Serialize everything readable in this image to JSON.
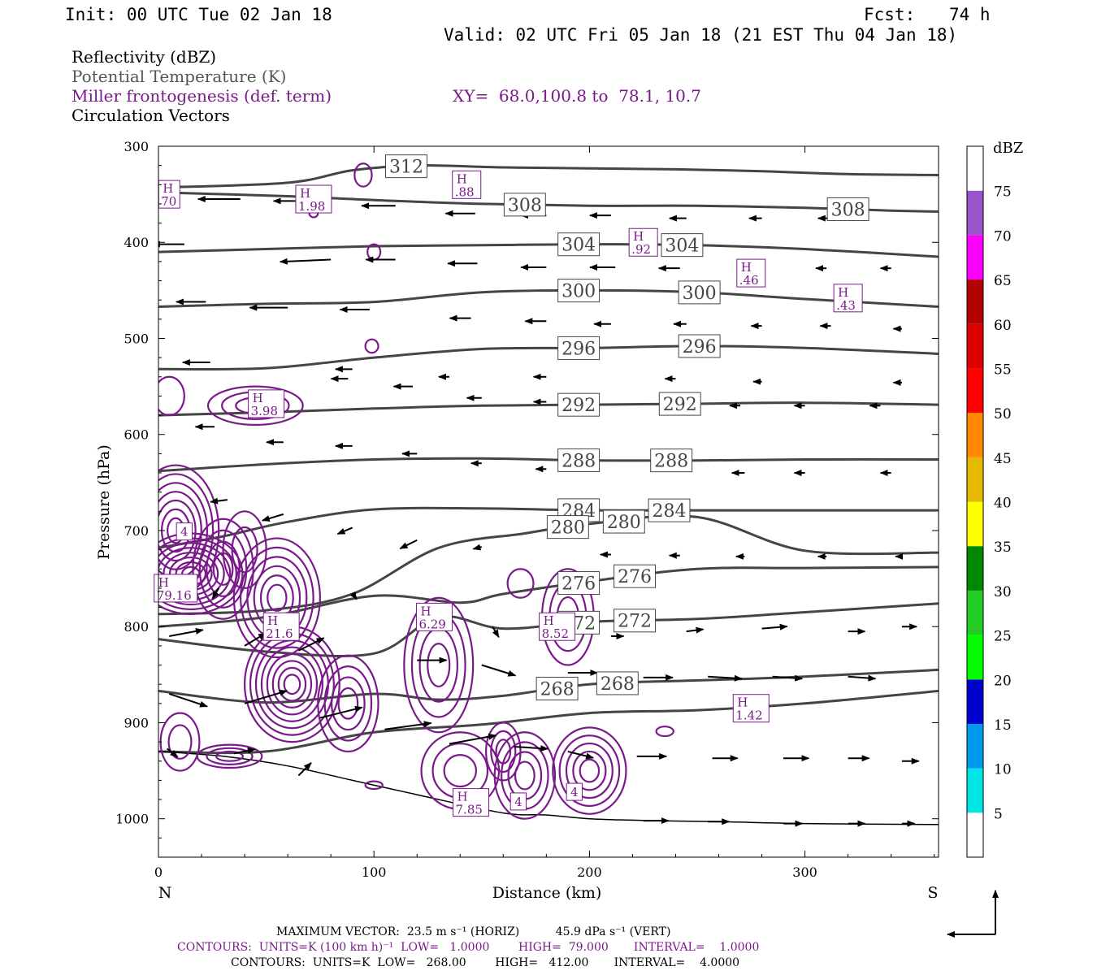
{
  "header": {
    "init": "Init: 00 UTC Tue 02 Jan 18",
    "fcst_label": "Fcst:",
    "fcst_value": "74 h",
    "valid": "Valid: 02 UTC Fri 05 Jan 18 (21 EST Thu 04 Jan 18)"
  },
  "legend": {
    "reflectivity": "Reflectivity (dBZ)",
    "theta": "Potential Temperature (K)",
    "frontogenesis": "Miller frontogenesis (def. term)",
    "xy": "XY=  68.0,100.8 to  78.1, 10.7",
    "vectors": "Circulation Vectors"
  },
  "colors": {
    "theta": "#454545",
    "frontogenesis": "#7a1a8a",
    "vectors": "#000000"
  },
  "chart_data": {
    "type": "cross-section",
    "xlabel": "Distance (km)",
    "ylabel": "Pressure (hPa)",
    "xlim": [
      0,
      362
    ],
    "ylim": [
      1040,
      300
    ],
    "x_ticks": [
      0,
      100,
      200,
      300
    ],
    "y_ticks": [
      300,
      400,
      500,
      600,
      700,
      800,
      900,
      1000
    ],
    "x_end_labels": {
      "left": "N",
      "right": "S"
    },
    "colorbar": {
      "title": "dBZ",
      "labels": [
        "5",
        "10",
        "15",
        "20",
        "25",
        "30",
        "35",
        "40",
        "45",
        "50",
        "55",
        "60",
        "65",
        "70",
        "75"
      ],
      "colors": [
        "#ffffff",
        "#00e5e5",
        "#0099ee",
        "#0000cc",
        "#00ff00",
        "#22cc22",
        "#008800",
        "#ffff00",
        "#e6b800",
        "#ff8800",
        "#ff0000",
        "#dd0000",
        "#b30000",
        "#ff00ff",
        "#9955cc",
        "#ffffff"
      ]
    },
    "isentropes": [
      {
        "label": "312",
        "x": [
          0,
          60,
          90,
          120,
          160,
          200,
          240,
          280,
          320,
          362
        ],
        "p": [
          343,
          338,
          325,
          320,
          322,
          323,
          324,
          326,
          329,
          330
        ]
      },
      {
        "label": "308",
        "x": [
          0,
          60,
          100,
          150,
          200,
          250,
          300,
          340,
          362
        ],
        "p": [
          348,
          352,
          356,
          360,
          362,
          362,
          364,
          367,
          368
        ]
      },
      {
        "label": "304",
        "x": [
          0,
          50,
          100,
          150,
          200,
          250,
          300,
          362
        ],
        "p": [
          410,
          407,
          404,
          403,
          402,
          403,
          407,
          415
        ]
      },
      {
        "label": "300",
        "x": [
          0,
          50,
          100,
          150,
          200,
          250,
          300,
          362
        ],
        "p": [
          467,
          464,
          462,
          452,
          450,
          452,
          459,
          467
        ]
      },
      {
        "label": "296",
        "x": [
          0,
          50,
          100,
          150,
          200,
          250,
          300,
          362
        ],
        "p": [
          532,
          531,
          520,
          511,
          510,
          508,
          510,
          516
        ]
      },
      {
        "label": "292",
        "x": [
          0,
          50,
          100,
          150,
          200,
          250,
          300,
          362
        ],
        "p": [
          580,
          577,
          573,
          570,
          569,
          568,
          567,
          569
        ]
      },
      {
        "label": "288",
        "x": [
          0,
          50,
          100,
          150,
          200,
          250,
          300,
          362
        ],
        "p": [
          638,
          631,
          626,
          625,
          627,
          627,
          626,
          626
        ]
      },
      {
        "label": "284",
        "x": [
          0,
          30,
          60,
          100,
          150,
          200,
          250,
          300,
          362
        ],
        "p": [
          718,
          706,
          691,
          678,
          677,
          679,
          679,
          679,
          679
        ]
      },
      {
        "label": "280",
        "x": [
          0,
          50,
          90,
          130,
          170,
          200,
          250,
          300,
          362
        ],
        "p": [
          787,
          783,
          766,
          718,
          703,
          693,
          686,
          721,
          723
        ]
      },
      {
        "label": "276",
        "x": [
          0,
          50,
          100,
          140,
          160,
          200,
          250,
          300,
          362
        ],
        "p": [
          800,
          790,
          768,
          775,
          766,
          753,
          740,
          739,
          738
        ]
      },
      {
        "label": "272",
        "x": [
          0,
          50,
          100,
          130,
          160,
          200,
          250,
          300,
          362
        ],
        "p": [
          813,
          826,
          828,
          790,
          802,
          795,
          792,
          785,
          776
        ]
      },
      {
        "label": "268",
        "x": [
          0,
          50,
          100,
          130,
          160,
          200,
          250,
          300,
          362
        ],
        "p": [
          867,
          879,
          870,
          876,
          872,
          860,
          856,
          852,
          845
        ]
      },
      {
        "label": "",
        "x": [
          0,
          50,
          100,
          150,
          200,
          250,
          300,
          362
        ],
        "p": [
          930,
          930,
          910,
          902,
          890,
          887,
          880,
          867
        ]
      }
    ],
    "surface": {
      "x": [
        0,
        30,
        60,
        90,
        120,
        160,
        180,
        200,
        230,
        260,
        300,
        362
      ],
      "p": [
        930,
        935,
        945,
        960,
        975,
        994,
        996,
        1000,
        1002,
        1003,
        1005,
        1006
      ]
    },
    "frontogenesis_maxima": [
      {
        "x": 5,
        "p": 350,
        "value": "70"
      },
      {
        "x": 72,
        "p": 355,
        "value": "1.98"
      },
      {
        "x": 143,
        "p": 340,
        "value": ".88"
      },
      {
        "x": 225,
        "p": 400,
        "value": ".92"
      },
      {
        "x": 275,
        "p": 432,
        "value": ".46"
      },
      {
        "x": 320,
        "p": 458,
        "value": ".43"
      },
      {
        "x": 50,
        "p": 568,
        "value": "3.98"
      },
      {
        "x": 8,
        "p": 760,
        "value": "79.16"
      },
      {
        "x": 57,
        "p": 800,
        "value": "21.6"
      },
      {
        "x": 128,
        "p": 790,
        "value": "6.29"
      },
      {
        "x": 185,
        "p": 800,
        "value": "8.52"
      },
      {
        "x": 275,
        "p": 885,
        "value": "1.42"
      },
      {
        "x": 145,
        "p": 983,
        "value": "7.85"
      }
    ],
    "small_labels": [
      {
        "x": 12,
        "p": 701,
        "value": "4"
      },
      {
        "x": 167,
        "p": 982,
        "value": "4"
      },
      {
        "x": 193,
        "p": 972,
        "value": "4"
      }
    ],
    "vectors": [
      {
        "x": 8,
        "p": 350,
        "u": -22,
        "w": 0
      },
      {
        "x": 38,
        "p": 355,
        "u": -20,
        "w": 0
      },
      {
        "x": 75,
        "p": 357,
        "u": -22,
        "w": 0
      },
      {
        "x": 110,
        "p": 362,
        "u": -16,
        "w": 0
      },
      {
        "x": 147,
        "p": 370,
        "u": -14,
        "w": 0
      },
      {
        "x": 180,
        "p": 372,
        "u": -12,
        "w": 0
      },
      {
        "x": 210,
        "p": 372,
        "u": -10,
        "w": 0
      },
      {
        "x": 245,
        "p": 375,
        "u": -8,
        "w": 0
      },
      {
        "x": 280,
        "p": 375,
        "u": -6,
        "w": 0
      },
      {
        "x": 312,
        "p": 375,
        "u": -6,
        "w": 0
      },
      {
        "x": 12,
        "p": 402,
        "u": -15,
        "w": 0
      },
      {
        "x": 80,
        "p": 418,
        "u": -24,
        "w": 1
      },
      {
        "x": 110,
        "p": 418,
        "u": -14,
        "w": 0
      },
      {
        "x": 148,
        "p": 422,
        "u": -14,
        "w": 0
      },
      {
        "x": 180,
        "p": 426,
        "u": -12,
        "w": 0
      },
      {
        "x": 212,
        "p": 426,
        "u": -12,
        "w": 0
      },
      {
        "x": 242,
        "p": 427,
        "u": -10,
        "w": 0
      },
      {
        "x": 280,
        "p": 427,
        "u": -6,
        "w": 0
      },
      {
        "x": 310,
        "p": 427,
        "u": -5,
        "w": 0
      },
      {
        "x": 340,
        "p": 427,
        "u": -5,
        "w": 0
      },
      {
        "x": 22,
        "p": 462,
        "u": -14,
        "w": 0
      },
      {
        "x": 60,
        "p": 468,
        "u": -18,
        "w": 0
      },
      {
        "x": 98,
        "p": 470,
        "u": -14,
        "w": 0
      },
      {
        "x": 145,
        "p": 479,
        "u": -10,
        "w": 0
      },
      {
        "x": 180,
        "p": 482,
        "u": -10,
        "w": 0
      },
      {
        "x": 210,
        "p": 485,
        "u": -8,
        "w": 0
      },
      {
        "x": 245,
        "p": 485,
        "u": -6,
        "w": 0
      },
      {
        "x": 280,
        "p": 487,
        "u": -5,
        "w": 0
      },
      {
        "x": 312,
        "p": 487,
        "u": -5,
        "w": 0
      },
      {
        "x": 345,
        "p": 490,
        "u": -4,
        "w": 0
      },
      {
        "x": 24,
        "p": 525,
        "u": -13,
        "w": 0
      },
      {
        "x": 90,
        "p": 532,
        "u": -8,
        "w": 0
      },
      {
        "x": 135,
        "p": 540,
        "u": -5,
        "w": 0
      },
      {
        "x": 180,
        "p": 540,
        "u": -6,
        "w": 0
      },
      {
        "x": 240,
        "p": 542,
        "u": -5,
        "w": 0
      },
      {
        "x": 280,
        "p": 545,
        "u": -4,
        "w": 0
      },
      {
        "x": 345,
        "p": 546,
        "u": -4,
        "w": 0
      },
      {
        "x": 88,
        "p": 542,
        "u": -8,
        "w": 0
      },
      {
        "x": 118,
        "p": 550,
        "u": -9,
        "w": 0
      },
      {
        "x": 150,
        "p": 562,
        "u": -7,
        "w": 0
      },
      {
        "x": 180,
        "p": 566,
        "u": -6,
        "w": 0
      },
      {
        "x": 270,
        "p": 570,
        "u": -5,
        "w": 0
      },
      {
        "x": 300,
        "p": 570,
        "u": -5,
        "w": 0
      },
      {
        "x": 335,
        "p": 570,
        "u": -5,
        "w": 0
      },
      {
        "x": 26,
        "p": 592,
        "u": -9,
        "w": 0
      },
      {
        "x": 58,
        "p": 608,
        "u": -8,
        "w": 0
      },
      {
        "x": 90,
        "p": 612,
        "u": -8,
        "w": 0
      },
      {
        "x": 120,
        "p": 620,
        "u": -7,
        "w": 0
      },
      {
        "x": 150,
        "p": 630,
        "u": -5,
        "w": 0
      },
      {
        "x": 180,
        "p": 636,
        "u": -5,
        "w": 0
      },
      {
        "x": 272,
        "p": 640,
        "u": -6,
        "w": 0
      },
      {
        "x": 300,
        "p": 640,
        "u": -5,
        "w": 0
      },
      {
        "x": 340,
        "p": 640,
        "u": -5,
        "w": 0
      },
      {
        "x": 32,
        "p": 668,
        "u": -8,
        "w": 1
      },
      {
        "x": 58,
        "p": 683,
        "u": -10,
        "w": 3
      },
      {
        "x": 90,
        "p": 697,
        "u": -7,
        "w": 3
      },
      {
        "x": 120,
        "p": 710,
        "u": -8,
        "w": 4
      },
      {
        "x": 150,
        "p": 717,
        "u": -4,
        "w": 1
      },
      {
        "x": 210,
        "p": 725,
        "u": -5,
        "w": 0
      },
      {
        "x": 242,
        "p": 726,
        "u": -5,
        "w": 0
      },
      {
        "x": 272,
        "p": 727,
        "u": -4,
        "w": 0
      },
      {
        "x": 310,
        "p": 727,
        "u": -4,
        "w": 0
      },
      {
        "x": 345,
        "p": 727,
        "u": -3,
        "w": 0
      },
      {
        "x": 28,
        "p": 760,
        "u": -3,
        "w": 5
      },
      {
        "x": 90,
        "p": 765,
        "u": 2,
        "w": 3
      },
      {
        "x": 155,
        "p": 800,
        "u": 3,
        "w": 5
      },
      {
        "x": 210,
        "p": 810,
        "u": 6,
        "w": 0
      },
      {
        "x": 245,
        "p": 805,
        "u": 8,
        "w": -1
      },
      {
        "x": 280,
        "p": 802,
        "u": 12,
        "w": -1
      },
      {
        "x": 320,
        "p": 805,
        "u": 8,
        "w": 0
      },
      {
        "x": 345,
        "p": 800,
        "u": 7,
        "w": 0
      },
      {
        "x": 5,
        "p": 810,
        "u": 16,
        "w": -3
      },
      {
        "x": 40,
        "p": 820,
        "u": 10,
        "w": -6
      },
      {
        "x": 65,
        "p": 825,
        "u": 12,
        "w": -6
      },
      {
        "x": 120,
        "p": 835,
        "u": 14,
        "w": 0
      },
      {
        "x": 150,
        "p": 840,
        "u": 16,
        "w": 5
      },
      {
        "x": 190,
        "p": 848,
        "u": 14,
        "w": 0
      },
      {
        "x": 225,
        "p": 853,
        "u": 14,
        "w": 0
      },
      {
        "x": 255,
        "p": 852,
        "u": 16,
        "w": 1
      },
      {
        "x": 285,
        "p": 852,
        "u": 14,
        "w": 1
      },
      {
        "x": 320,
        "p": 852,
        "u": 13,
        "w": 1
      },
      {
        "x": 5,
        "p": 870,
        "u": 18,
        "w": 6
      },
      {
        "x": 40,
        "p": 880,
        "u": 20,
        "w": -6
      },
      {
        "x": 75,
        "p": 895,
        "u": 20,
        "w": -5
      },
      {
        "x": 105,
        "p": 907,
        "u": 22,
        "w": -3
      },
      {
        "x": 135,
        "p": 922,
        "u": 22,
        "w": -4
      },
      {
        "x": 165,
        "p": 925,
        "u": 16,
        "w": 1
      },
      {
        "x": 190,
        "p": 930,
        "u": 12,
        "w": 3
      },
      {
        "x": 222,
        "p": 935,
        "u": 14,
        "w": 0
      },
      {
        "x": 257,
        "p": 937,
        "u": 12,
        "w": 0
      },
      {
        "x": 290,
        "p": 937,
        "u": 12,
        "w": 0
      },
      {
        "x": 320,
        "p": 937,
        "u": 10,
        "w": 0
      },
      {
        "x": 345,
        "p": 940,
        "u": 8,
        "w": 0
      },
      {
        "x": 4,
        "p": 927,
        "u": 5,
        "w": 4
      },
      {
        "x": 35,
        "p": 932,
        "u": 10,
        "w": -2
      },
      {
        "x": 65,
        "p": 955,
        "u": 6,
        "w": -6
      },
      {
        "x": 225,
        "p": 1002,
        "u": 12,
        "w": 0
      },
      {
        "x": 255,
        "p": 1003,
        "u": 10,
        "w": 0
      },
      {
        "x": 290,
        "p": 1005,
        "u": 9,
        "w": 0
      },
      {
        "x": 320,
        "p": 1005,
        "u": 8,
        "w": 0
      },
      {
        "x": 345,
        "p": 1005,
        "u": 6,
        "w": 0
      }
    ]
  },
  "footer": {
    "line1": "MAXIMUM VECTOR:  23.5 m s⁻¹ (HORIZ)          45.9 dPa s⁻¹ (VERT)",
    "line2": "CONTOURS:  UNITS=K (100 km h)⁻¹  LOW=   1.0000        HIGH=  79.000       INTERVAL=    1.0000",
    "line3": "CONTOURS:  UNITS=K  LOW=   268.00        HIGH=   412.00       INTERVAL=    4.0000"
  }
}
